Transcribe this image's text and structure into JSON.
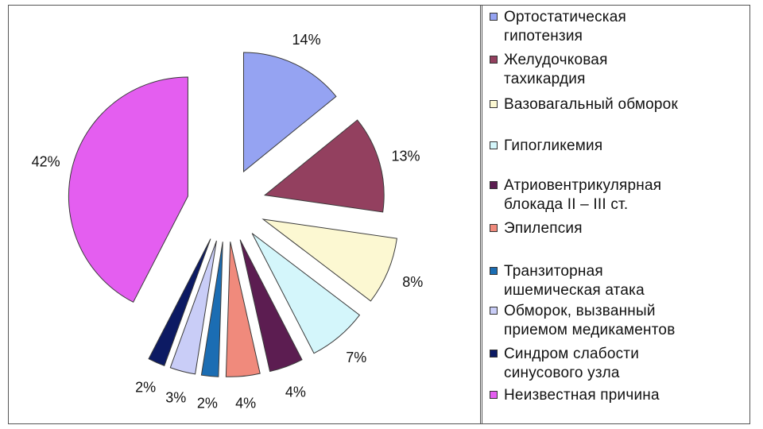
{
  "chart_data": {
    "type": "pie",
    "title": "",
    "slices": [
      {
        "label": "Ортостатическая\nгипотензия",
        "value": 14,
        "display": "14%",
        "color": "#95a3f2"
      },
      {
        "label": "Желудочковая\nтахикардия",
        "value": 13,
        "display": "13%",
        "color": "#93405f"
      },
      {
        "label": "Вазовагальный обморок",
        "value": 8,
        "display": "8%",
        "color": "#fcf8d2"
      },
      {
        "label": "Гипогликемия",
        "value": 7,
        "display": "7%",
        "color": "#d4f6fb"
      },
      {
        "label": "Атриовентрикулярная\nблокада II – III ст.",
        "value": 4,
        "display": "4%",
        "color": "#5c1d51"
      },
      {
        "label": "Эпилепсия",
        "value": 4,
        "display": "4%",
        "color": "#f08a7c"
      },
      {
        "label": "Транзиторная\nишемическая атака",
        "value": 2,
        "display": "2%",
        "color": "#1b6db3"
      },
      {
        "label": "Обморок, вызванный\nприемом медикаментов",
        "value": 3,
        "display": "3%",
        "color": "#c9cdf7"
      },
      {
        "label": "Синдром слабости\nсинусового узла",
        "value": 2,
        "display": "2%",
        "color": "#0c1a63"
      },
      {
        "label": "Неизвестная причина",
        "value": 42,
        "display": "42%",
        "color": "#e45ef0"
      }
    ],
    "legend_position": "right",
    "exploded": true
  }
}
